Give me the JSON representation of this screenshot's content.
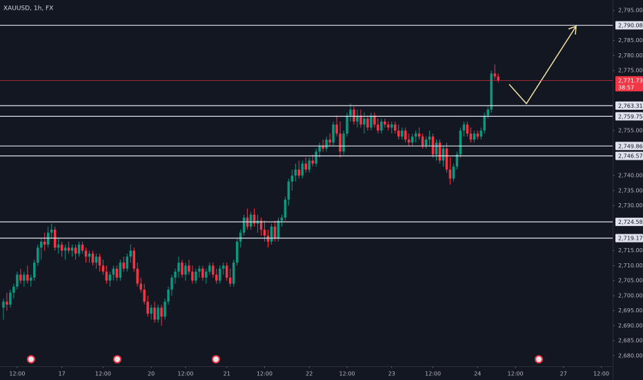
{
  "chart_data": {
    "type": "candlestick",
    "title": "XAUUSD, 1h, FX",
    "up_color": "#089981",
    "down_color": "#f23645",
    "candles": [
      [
        2696,
        2699,
        2692,
        2698
      ],
      [
        2698,
        2701,
        2695,
        2697
      ],
      [
        2697,
        2702,
        2696,
        2701
      ],
      [
        2701,
        2704,
        2699,
        2703
      ],
      [
        2703,
        2708,
        2702,
        2707
      ],
      [
        2707,
        2709,
        2704,
        2705
      ],
      [
        2705,
        2708,
        2703,
        2707
      ],
      [
        2707,
        2710,
        2704,
        2705
      ],
      [
        2705,
        2707,
        2703,
        2706
      ],
      [
        2706,
        2712,
        2705,
        2711
      ],
      [
        2711,
        2717,
        2710,
        2716
      ],
      [
        2716,
        2719,
        2712,
        2718
      ],
      [
        2718,
        2721,
        2715,
        2717
      ],
      [
        2717,
        2723,
        2716,
        2721
      ],
      [
        2721,
        2724,
        2719,
        2722
      ],
      [
        2722,
        2723,
        2715,
        2716
      ],
      [
        2716,
        2719,
        2714,
        2717
      ],
      [
        2717,
        2718,
        2713,
        2715
      ],
      [
        2715,
        2717,
        2712,
        2716
      ],
      [
        2716,
        2718,
        2714,
        2715
      ],
      [
        2715,
        2717,
        2713,
        2716
      ],
      [
        2716,
        2717,
        2712,
        2714
      ],
      [
        2714,
        2718,
        2713,
        2717
      ],
      [
        2717,
        2718,
        2714,
        2715
      ],
      [
        2715,
        2716,
        2711,
        2713
      ],
      [
        2713,
        2715,
        2711,
        2714
      ],
      [
        2714,
        2715,
        2710,
        2711
      ],
      [
        2711,
        2714,
        2709,
        2713
      ],
      [
        2713,
        2714,
        2708,
        2710
      ],
      [
        2710,
        2712,
        2707,
        2708
      ],
      [
        2708,
        2710,
        2704,
        2705
      ],
      [
        2705,
        2708,
        2703,
        2707
      ],
      [
        2707,
        2710,
        2705,
        2709
      ],
      [
        2709,
        2710,
        2705,
        2706
      ],
      [
        2706,
        2712,
        2705,
        2711
      ],
      [
        2711,
        2713,
        2708,
        2709
      ],
      [
        2709,
        2714,
        2708,
        2713
      ],
      [
        2713,
        2717,
        2711,
        2715
      ],
      [
        2715,
        2716,
        2708,
        2709
      ],
      [
        2709,
        2711,
        2703,
        2704
      ],
      [
        2704,
        2706,
        2701,
        2702
      ],
      [
        2702,
        2704,
        2697,
        2698
      ],
      [
        2698,
        2700,
        2693,
        2694
      ],
      [
        2694,
        2697,
        2692,
        2696
      ],
      [
        2696,
        2698,
        2691,
        2692
      ],
      [
        2692,
        2697,
        2691,
        2696
      ],
      [
        2696,
        2697,
        2690,
        2693
      ],
      [
        2693,
        2699,
        2692,
        2698
      ],
      [
        2698,
        2703,
        2697,
        2702
      ],
      [
        2702,
        2707,
        2700,
        2706
      ],
      [
        2706,
        2709,
        2704,
        2708
      ],
      [
        2708,
        2713,
        2706,
        2711
      ],
      [
        2711,
        2712,
        2706,
        2707
      ],
      [
        2707,
        2711,
        2705,
        2710
      ],
      [
        2710,
        2712,
        2707,
        2708
      ],
      [
        2708,
        2710,
        2704,
        2705
      ],
      [
        2705,
        2709,
        2704,
        2708
      ],
      [
        2708,
        2710,
        2706,
        2709
      ],
      [
        2709,
        2710,
        2705,
        2706
      ],
      [
        2706,
        2709,
        2704,
        2708
      ],
      [
        2708,
        2711,
        2707,
        2710
      ],
      [
        2710,
        2711,
        2706,
        2707
      ],
      [
        2707,
        2709,
        2704,
        2705
      ],
      [
        2705,
        2710,
        2704,
        2709
      ],
      [
        2709,
        2711,
        2707,
        2710
      ],
      [
        2710,
        2711,
        2705,
        2706
      ],
      [
        2706,
        2709,
        2703,
        2704
      ],
      [
        2704,
        2712,
        2703,
        2711
      ],
      [
        2711,
        2719,
        2710,
        2718
      ],
      [
        2718,
        2722,
        2716,
        2721
      ],
      [
        2721,
        2727,
        2720,
        2726
      ],
      [
        2726,
        2729,
        2722,
        2723
      ],
      [
        2723,
        2728,
        2722,
        2727
      ],
      [
        2727,
        2729,
        2723,
        2724
      ],
      [
        2724,
        2727,
        2721,
        2725
      ],
      [
        2725,
        2726,
        2720,
        2722
      ],
      [
        2722,
        2725,
        2718,
        2720
      ],
      [
        2720,
        2722,
        2716,
        2718
      ],
      [
        2718,
        2724,
        2717,
        2723
      ],
      [
        2723,
        2725,
        2718,
        2719
      ],
      [
        2719,
        2726,
        2718,
        2725
      ],
      [
        2725,
        2727,
        2723,
        2726
      ],
      [
        2726,
        2733,
        2725,
        2732
      ],
      [
        2732,
        2739,
        2730,
        2738
      ],
      [
        2738,
        2742,
        2735,
        2740
      ],
      [
        2740,
        2744,
        2738,
        2742
      ],
      [
        2742,
        2745,
        2739,
        2740
      ],
      [
        2740,
        2745,
        2739,
        2744
      ],
      [
        2744,
        2746,
        2741,
        2742
      ],
      [
        2742,
        2746,
        2741,
        2745
      ],
      [
        2745,
        2747,
        2743,
        2744
      ],
      [
        2744,
        2749,
        2743,
        2748
      ],
      [
        2748,
        2751,
        2746,
        2750
      ],
      [
        2750,
        2752,
        2748,
        2749
      ],
      [
        2749,
        2753,
        2748,
        2752
      ],
      [
        2752,
        2754,
        2750,
        2751
      ],
      [
        2751,
        2758,
        2750,
        2757
      ],
      [
        2757,
        2760,
        2753,
        2754
      ],
      [
        2754,
        2758,
        2746,
        2748
      ],
      [
        2748,
        2755,
        2747,
        2754
      ],
      [
        2754,
        2761,
        2753,
        2760
      ],
      [
        2760,
        2764,
        2758,
        2762
      ],
      [
        2762,
        2763,
        2757,
        2758
      ],
      [
        2758,
        2762,
        2756,
        2760
      ],
      [
        2760,
        2762,
        2756,
        2757
      ],
      [
        2757,
        2761,
        2754,
        2759
      ],
      [
        2759,
        2760,
        2755,
        2756
      ],
      [
        2756,
        2761,
        2755,
        2760
      ],
      [
        2760,
        2761,
        2756,
        2757
      ],
      [
        2757,
        2759,
        2754,
        2755
      ],
      [
        2755,
        2759,
        2754,
        2758
      ],
      [
        2758,
        2759,
        2756,
        2757
      ],
      [
        2757,
        2758,
        2755,
        2756
      ],
      [
        2756,
        2758,
        2754,
        2757
      ],
      [
        2757,
        2758,
        2754,
        2755
      ],
      [
        2755,
        2757,
        2752,
        2753
      ],
      [
        2753,
        2756,
        2752,
        2755
      ],
      [
        2755,
        2756,
        2751,
        2752
      ],
      [
        2752,
        2754,
        2750,
        2751
      ],
      [
        2751,
        2754,
        2750,
        2753
      ],
      [
        2753,
        2755,
        2751,
        2754
      ],
      [
        2754,
        2756,
        2752,
        2753
      ],
      [
        2753,
        2754,
        2749,
        2750
      ],
      [
        2750,
        2753,
        2749,
        2752
      ],
      [
        2752,
        2755,
        2750,
        2753
      ],
      [
        2753,
        2754,
        2746,
        2747
      ],
      [
        2747,
        2752,
        2745,
        2751
      ],
      [
        2751,
        2752,
        2744,
        2745
      ],
      [
        2745,
        2750,
        2743,
        2749
      ],
      [
        2749,
        2751,
        2741,
        2742
      ],
      [
        2742,
        2746,
        2737,
        2739
      ],
      [
        2739,
        2744,
        2738,
        2743
      ],
      [
        2743,
        2748,
        2742,
        2747
      ],
      [
        2747,
        2756,
        2746,
        2755
      ],
      [
        2755,
        2758,
        2753,
        2757
      ],
      [
        2757,
        2758,
        2753,
        2754
      ],
      [
        2754,
        2756,
        2751,
        2752
      ],
      [
        2752,
        2755,
        2751,
        2754
      ],
      [
        2754,
        2755,
        2752,
        2753
      ],
      [
        2753,
        2756,
        2752,
        2755
      ],
      [
        2755,
        2761,
        2754,
        2760
      ],
      [
        2760,
        2763,
        2759,
        2762
      ],
      [
        2762,
        2775,
        2761,
        2774
      ],
      [
        2774,
        2777,
        2772,
        2773
      ],
      [
        2773,
        2774,
        2771,
        2771.73
      ]
    ],
    "xlim": [
      -1,
      177.3
    ],
    "xticks": [
      {
        "value": 4,
        "label": "12:00"
      },
      {
        "value": 17,
        "label": "17"
      },
      {
        "value": 29,
        "label": "12:00"
      },
      {
        "value": 43,
        "label": "20"
      },
      {
        "value": 53,
        "label": "12:00"
      },
      {
        "value": 65,
        "label": "21"
      },
      {
        "value": 76,
        "label": "12:00"
      },
      {
        "value": 89,
        "label": "22"
      },
      {
        "value": 100,
        "label": "12:00"
      },
      {
        "value": 113,
        "label": "23"
      },
      {
        "value": 125,
        "label": "12:00"
      },
      {
        "value": 138,
        "label": "24"
      },
      {
        "value": 149,
        "label": "12:00"
      },
      {
        "value": 163,
        "label": "27"
      },
      {
        "value": 174,
        "label": "12:00"
      }
    ],
    "ylim": [
      2676.5,
      2798.5
    ],
    "yticks": [
      {
        "value": 2795,
        "label": "2,795.00"
      },
      {
        "value": 2785,
        "label": "2,785.00"
      },
      {
        "value": 2780,
        "label": "2,780.00"
      },
      {
        "value": 2775,
        "label": "2,775.00"
      },
      {
        "value": 2755,
        "label": "2,755.00"
      },
      {
        "value": 2740,
        "label": "2,740.00"
      },
      {
        "value": 2735,
        "label": "2,735.00"
      },
      {
        "value": 2730,
        "label": "2,730.00"
      },
      {
        "value": 2715,
        "label": "2,715.00"
      },
      {
        "value": 2710,
        "label": "2,710.00"
      },
      {
        "value": 2705,
        "label": "2,705.00"
      },
      {
        "value": 2700,
        "label": "2,700.00"
      },
      {
        "value": 2695,
        "label": "2,695.00"
      },
      {
        "value": 2690,
        "label": "2,690.00"
      },
      {
        "value": 2685,
        "label": "2,685.00"
      },
      {
        "value": 2680,
        "label": "2,680.00"
      }
    ],
    "levels": [
      {
        "value": 2790.08,
        "label": "2,790.08"
      },
      {
        "value": 2763.31,
        "label": "2,763.31"
      },
      {
        "value": 2759.75,
        "label": "2,759.75"
      },
      {
        "value": 2749.86,
        "label": "2,749.86"
      },
      {
        "value": 2746.57,
        "label": "2,746.57"
      },
      {
        "value": 2724.58,
        "label": "2,724.58"
      },
      {
        "value": 2719.17,
        "label": "2,719.17"
      }
    ],
    "last_price": {
      "value": 2771.73,
      "label": "2,771.73"
    },
    "countdown": "38:57"
  }
}
